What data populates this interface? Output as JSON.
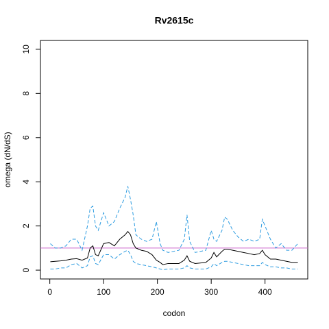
{
  "chart_data": {
    "type": "line",
    "title": "Rv2615c",
    "x_label": "codon",
    "y_label": "omega (dN/dS)",
    "x": [
      1,
      10,
      20,
      30,
      40,
      50,
      60,
      70,
      75,
      80,
      85,
      90,
      100,
      110,
      120,
      130,
      140,
      145,
      150,
      155,
      160,
      170,
      180,
      190,
      198,
      205,
      210,
      220,
      240,
      250,
      255,
      260,
      270,
      290,
      300,
      305,
      310,
      320,
      325,
      330,
      340,
      350,
      360,
      370,
      380,
      390,
      395,
      400,
      410,
      420,
      430,
      440,
      450,
      461
    ],
    "series": [
      {
        "color": "#000000",
        "dash": false,
        "values": [
          0.38,
          0.4,
          0.42,
          0.45,
          0.5,
          0.52,
          0.45,
          0.55,
          1.0,
          1.1,
          0.7,
          0.65,
          1.2,
          1.25,
          1.1,
          1.4,
          1.6,
          1.75,
          1.6,
          1.2,
          1.0,
          0.9,
          0.85,
          0.7,
          0.45,
          0.35,
          0.25,
          0.3,
          0.3,
          0.45,
          0.65,
          0.4,
          0.3,
          0.35,
          0.55,
          0.8,
          0.6,
          0.85,
          0.95,
          0.95,
          0.9,
          0.85,
          0.8,
          0.75,
          0.7,
          0.75,
          0.9,
          0.7,
          0.5,
          0.5,
          0.45,
          0.4,
          0.35,
          0.35
        ]
      },
      {
        "color": "#2b9be0",
        "dash": true,
        "values": [
          1.2,
          1.0,
          1.0,
          1.1,
          1.4,
          1.4,
          0.9,
          2.0,
          2.8,
          2.9,
          2.0,
          1.8,
          2.6,
          2.0,
          2.2,
          2.8,
          3.3,
          3.8,
          3.2,
          2.5,
          1.6,
          1.4,
          1.3,
          1.4,
          2.2,
          1.2,
          0.9,
          0.8,
          0.9,
          1.4,
          2.5,
          1.3,
          0.8,
          0.9,
          1.8,
          1.4,
          1.3,
          1.8,
          2.4,
          2.3,
          1.8,
          1.5,
          1.3,
          1.4,
          1.3,
          1.4,
          2.3,
          2.0,
          1.4,
          1.0,
          1.2,
          0.9,
          0.9,
          1.2
        ]
      },
      {
        "color": "#2b9be0",
        "dash": true,
        "values": [
          0.05,
          0.05,
          0.1,
          0.1,
          0.25,
          0.3,
          0.1,
          0.2,
          0.6,
          0.65,
          0.3,
          0.25,
          0.7,
          0.7,
          0.5,
          0.7,
          0.85,
          0.9,
          0.7,
          0.4,
          0.3,
          0.25,
          0.2,
          0.15,
          0.1,
          0.05,
          0.02,
          0.05,
          0.05,
          0.1,
          0.2,
          0.1,
          0.05,
          0.05,
          0.15,
          0.3,
          0.2,
          0.35,
          0.4,
          0.4,
          0.35,
          0.3,
          0.25,
          0.2,
          0.2,
          0.2,
          0.35,
          0.25,
          0.15,
          0.15,
          0.1,
          0.1,
          0.05,
          0.05
        ]
      }
    ],
    "hline": {
      "value": 1,
      "color": "#cc66cc"
    },
    "xlim": [
      -17.4,
      479.4
    ],
    "ylim": [
      -0.4,
      10.4
    ],
    "xticks": [
      0,
      100,
      200,
      300,
      400
    ],
    "yticks": [
      0,
      2,
      4,
      6,
      8,
      10
    ],
    "grid": false
  }
}
